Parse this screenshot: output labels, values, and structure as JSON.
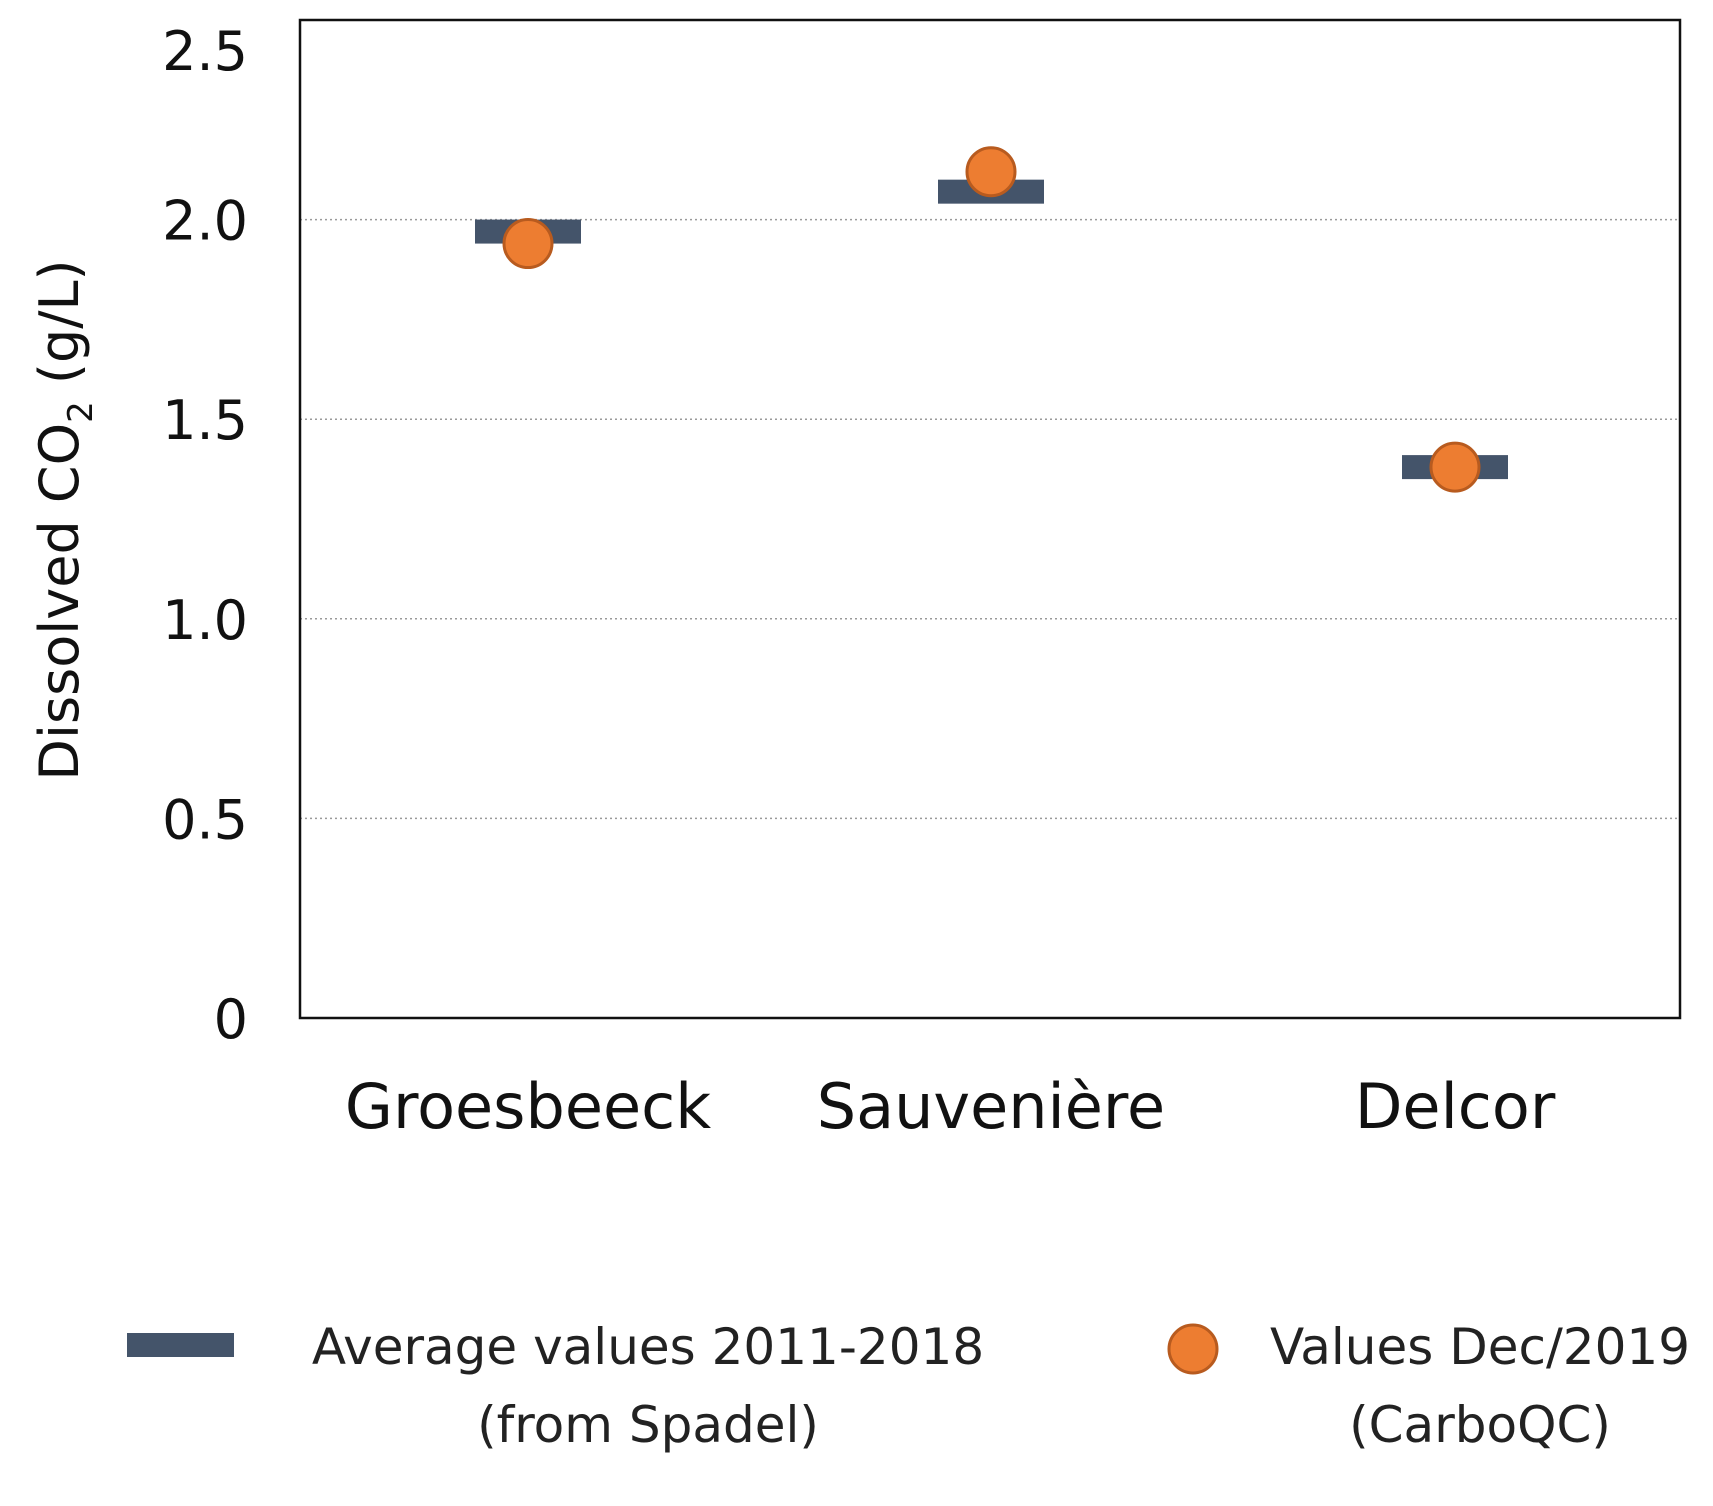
{
  "chart_data": {
    "type": "scatter",
    "title": "",
    "xlabel": "",
    "ylabel": {
      "prefix": "Dissolved CO",
      "subscript": "2",
      "suffix": " (g/L)"
    },
    "categories": [
      "Groesbeeck",
      "Sauvenière",
      "Delcor"
    ],
    "ylim": [
      0,
      2.5
    ],
    "yticks": [
      0,
      0.5,
      1.0,
      1.5,
      2.0,
      2.5
    ],
    "ytick_labels": [
      "0",
      "0.5",
      "1.0",
      "1.5",
      "2.0",
      "2.5"
    ],
    "gridlines": [
      0.5,
      1.0,
      1.5,
      2.0
    ],
    "grid": "dotted horizontal",
    "series": [
      {
        "name": "Average values 2011-2018 (from Spadel)",
        "legend_lines": [
          "Average values 2011-2018",
          "(from Spadel)"
        ],
        "marker": "dash",
        "color": "#44546a",
        "values": [
          1.97,
          2.07,
          1.38
        ]
      },
      {
        "name": "Values Dec/2019 (CarboQC)",
        "legend_lines": [
          "Values Dec/2019",
          "(CarboQC)"
        ],
        "marker": "circle",
        "color": "#ed7d31",
        "edge_color": "#b85b1f",
        "values": [
          1.94,
          2.12,
          1.38
        ]
      }
    ],
    "legend_position": "bottom"
  }
}
